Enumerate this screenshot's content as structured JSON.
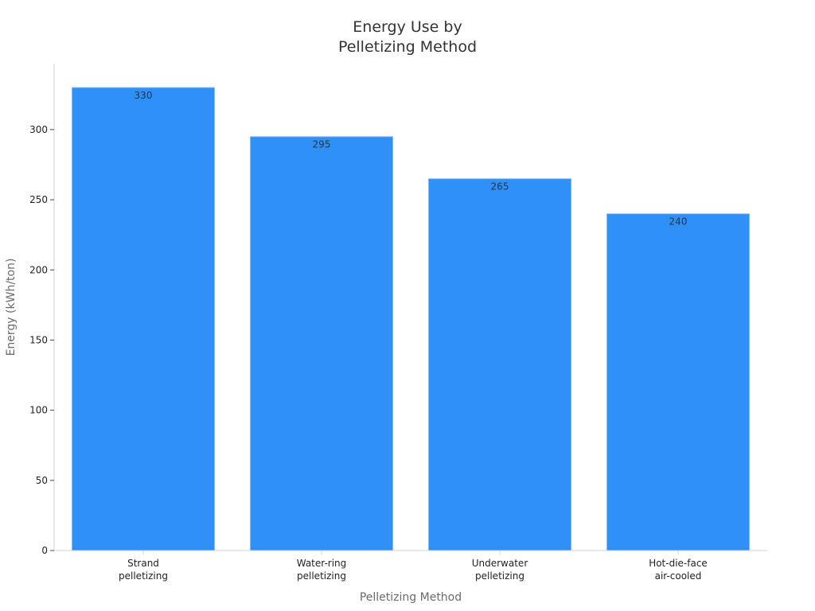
{
  "chart_data": {
    "type": "bar",
    "title": "Energy Use by Pelletizing Method",
    "title_lines": [
      "Energy Use by",
      "Pelletizing Method"
    ],
    "xlabel": "Pelletizing Method",
    "ylabel": "Energy (kWh/ton)",
    "categories": [
      "Strand pelletizing",
      "Water-ring pelletizing",
      "Underwater pelletizing",
      "Hot-die-face air-cooled"
    ],
    "category_lines": [
      [
        "Strand",
        "pelletizing"
      ],
      [
        "Water-ring",
        "pelletizing"
      ],
      [
        "Underwater",
        "pelletizing"
      ],
      [
        "Hot-die-face",
        "air-cooled"
      ]
    ],
    "values": [
      330,
      295,
      265,
      240
    ],
    "data_labels": [
      "330",
      "295",
      "265",
      "240"
    ],
    "ylim": [
      0,
      347
    ],
    "yticks": [
      0,
      50,
      100,
      150,
      200,
      250,
      300
    ],
    "ytick_labels": [
      "0",
      "50",
      "100",
      "150",
      "200",
      "250",
      "300"
    ],
    "grid": false,
    "legend": false,
    "colors": {
      "bar_fill": "#2e90f8",
      "bar_stroke": "#8fc4fb",
      "axis": "#d0d0d0",
      "tick": "#444444"
    }
  }
}
